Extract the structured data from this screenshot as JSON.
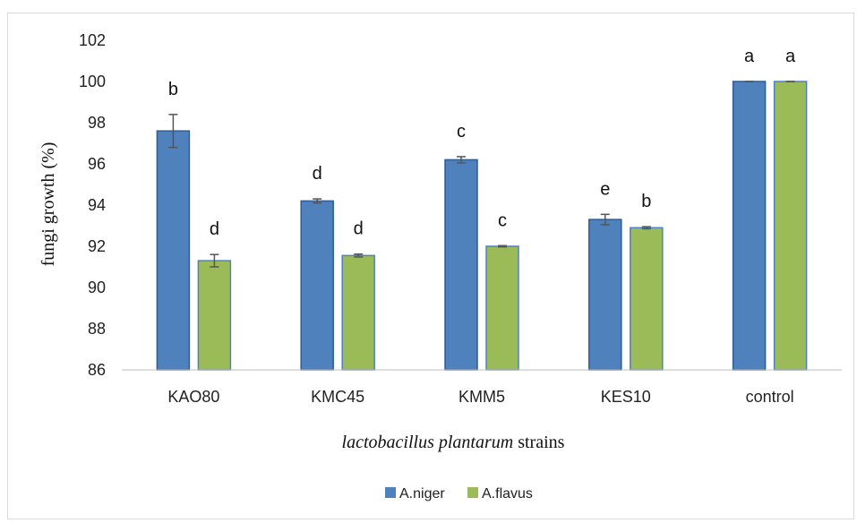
{
  "chart_data": {
    "type": "bar",
    "title": "",
    "ylabel": "fungi growth (%)",
    "xlabel_italic": "lactobacillus plantarum",
    "xlabel_rest": " strains",
    "ylim": [
      86,
      102
    ],
    "yticks": [
      86,
      88,
      90,
      92,
      94,
      96,
      98,
      100,
      102
    ],
    "categories": [
      "KAO80",
      "KMC45",
      "KMM5",
      "KES10",
      "control"
    ],
    "series": [
      {
        "name": "A.niger",
        "color": "#4F81BD",
        "border": "#2E5C99",
        "values": [
          97.6,
          94.2,
          96.2,
          93.3,
          100.0
        ],
        "errors": [
          0.8,
          0.1,
          0.15,
          0.25,
          0.0
        ],
        "letters": [
          "b",
          "d",
          "c",
          "e",
          "a"
        ]
      },
      {
        "name": "A.flavus",
        "color": "#9BBB59",
        "border": "#4F81BD",
        "values": [
          91.3,
          91.55,
          92.0,
          92.9,
          100.0
        ],
        "errors": [
          0.3,
          0.07,
          0.03,
          0.05,
          0.0
        ],
        "letters": [
          "d",
          "d",
          "c",
          "b",
          "a"
        ]
      }
    ],
    "legend_position": "bottom",
    "grid": false
  }
}
